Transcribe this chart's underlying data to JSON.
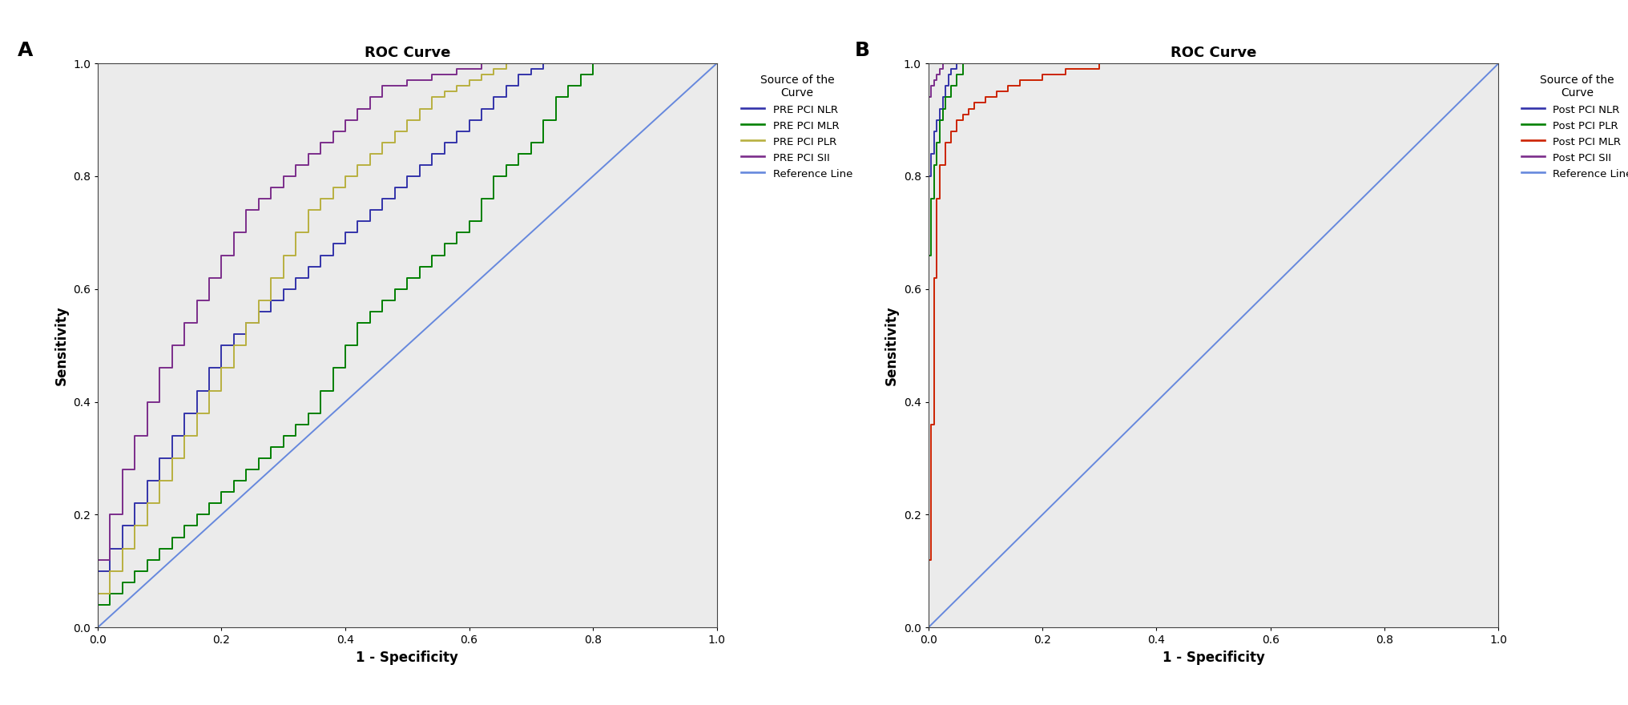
{
  "panel_A": {
    "title": "ROC Curve",
    "label": "A",
    "legend_title": "Source of the\nCurve",
    "curves": [
      {
        "name": "PRE PCI NLR",
        "color": "#3333aa",
        "x": [
          0.0,
          0.0,
          0.02,
          0.02,
          0.04,
          0.04,
          0.06,
          0.06,
          0.08,
          0.08,
          0.1,
          0.1,
          0.12,
          0.12,
          0.14,
          0.14,
          0.16,
          0.16,
          0.18,
          0.18,
          0.2,
          0.2,
          0.22,
          0.22,
          0.24,
          0.24,
          0.26,
          0.26,
          0.28,
          0.28,
          0.3,
          0.3,
          0.32,
          0.32,
          0.34,
          0.34,
          0.36,
          0.36,
          0.38,
          0.38,
          0.4,
          0.4,
          0.42,
          0.42,
          0.44,
          0.44,
          0.46,
          0.46,
          0.48,
          0.48,
          0.5,
          0.5,
          0.52,
          0.52,
          0.54,
          0.54,
          0.56,
          0.56,
          0.58,
          0.58,
          0.6,
          0.6,
          0.62,
          0.62,
          0.64,
          0.64,
          0.66,
          0.66,
          0.68,
          0.68,
          0.7,
          0.7,
          0.72,
          0.72,
          0.74,
          0.74,
          0.76,
          0.76,
          0.78,
          0.78,
          0.8,
          0.8,
          0.84,
          0.84,
          0.88,
          0.88,
          0.92,
          0.92,
          1.0
        ],
        "y": [
          0.0,
          0.1,
          0.1,
          0.14,
          0.14,
          0.18,
          0.18,
          0.22,
          0.22,
          0.26,
          0.26,
          0.3,
          0.3,
          0.34,
          0.34,
          0.38,
          0.38,
          0.42,
          0.42,
          0.46,
          0.46,
          0.5,
          0.5,
          0.52,
          0.52,
          0.54,
          0.54,
          0.56,
          0.56,
          0.58,
          0.58,
          0.6,
          0.6,
          0.62,
          0.62,
          0.64,
          0.64,
          0.66,
          0.66,
          0.68,
          0.68,
          0.7,
          0.7,
          0.72,
          0.72,
          0.74,
          0.74,
          0.76,
          0.76,
          0.78,
          0.78,
          0.8,
          0.8,
          0.82,
          0.82,
          0.84,
          0.84,
          0.86,
          0.86,
          0.88,
          0.88,
          0.9,
          0.9,
          0.92,
          0.92,
          0.94,
          0.94,
          0.96,
          0.96,
          0.98,
          0.98,
          0.99,
          0.99,
          1.0,
          1.0,
          1.0,
          1.0,
          1.0,
          1.0,
          1.0,
          1.0,
          1.0,
          1.0,
          1.0,
          1.0,
          1.0,
          1.0,
          1.0,
          1.0
        ]
      },
      {
        "name": "PRE PCI MLR",
        "color": "#008000",
        "x": [
          0.0,
          0.0,
          0.02,
          0.02,
          0.04,
          0.04,
          0.06,
          0.06,
          0.08,
          0.08,
          0.1,
          0.1,
          0.12,
          0.12,
          0.14,
          0.14,
          0.16,
          0.16,
          0.18,
          0.18,
          0.2,
          0.2,
          0.22,
          0.22,
          0.24,
          0.24,
          0.26,
          0.26,
          0.28,
          0.28,
          0.3,
          0.3,
          0.32,
          0.32,
          0.34,
          0.34,
          0.36,
          0.36,
          0.38,
          0.38,
          0.4,
          0.4,
          0.42,
          0.42,
          0.44,
          0.44,
          0.46,
          0.46,
          0.48,
          0.48,
          0.5,
          0.5,
          0.52,
          0.52,
          0.54,
          0.54,
          0.56,
          0.56,
          0.58,
          0.58,
          0.6,
          0.6,
          0.62,
          0.62,
          0.64,
          0.64,
          0.66,
          0.66,
          0.68,
          0.68,
          0.7,
          0.7,
          0.72,
          0.72,
          0.74,
          0.74,
          0.76,
          0.76,
          0.78,
          0.78,
          0.8,
          0.8,
          0.82,
          0.82,
          0.84,
          0.84,
          0.86,
          0.86,
          0.9,
          0.9,
          1.0
        ],
        "y": [
          0.0,
          0.04,
          0.04,
          0.06,
          0.06,
          0.08,
          0.08,
          0.1,
          0.1,
          0.12,
          0.12,
          0.14,
          0.14,
          0.16,
          0.16,
          0.18,
          0.18,
          0.2,
          0.2,
          0.22,
          0.22,
          0.24,
          0.24,
          0.26,
          0.26,
          0.28,
          0.28,
          0.3,
          0.3,
          0.32,
          0.32,
          0.34,
          0.34,
          0.36,
          0.36,
          0.38,
          0.38,
          0.42,
          0.42,
          0.46,
          0.46,
          0.5,
          0.5,
          0.54,
          0.54,
          0.56,
          0.56,
          0.58,
          0.58,
          0.6,
          0.6,
          0.62,
          0.62,
          0.64,
          0.64,
          0.66,
          0.66,
          0.68,
          0.68,
          0.7,
          0.7,
          0.72,
          0.72,
          0.76,
          0.76,
          0.8,
          0.8,
          0.82,
          0.82,
          0.84,
          0.84,
          0.86,
          0.86,
          0.9,
          0.9,
          0.94,
          0.94,
          0.96,
          0.96,
          0.98,
          0.98,
          1.0,
          1.0,
          1.0,
          1.0,
          1.0,
          1.0,
          1.0,
          1.0,
          1.0,
          1.0
        ]
      },
      {
        "name": "PRE PCI PLR",
        "color": "#b8b040",
        "x": [
          0.0,
          0.0,
          0.02,
          0.02,
          0.04,
          0.04,
          0.06,
          0.06,
          0.08,
          0.08,
          0.1,
          0.1,
          0.12,
          0.12,
          0.14,
          0.14,
          0.16,
          0.16,
          0.18,
          0.18,
          0.2,
          0.2,
          0.22,
          0.22,
          0.24,
          0.24,
          0.26,
          0.26,
          0.28,
          0.28,
          0.3,
          0.3,
          0.32,
          0.32,
          0.34,
          0.34,
          0.36,
          0.36,
          0.38,
          0.38,
          0.4,
          0.4,
          0.42,
          0.42,
          0.44,
          0.44,
          0.46,
          0.46,
          0.48,
          0.48,
          0.5,
          0.5,
          0.52,
          0.52,
          0.54,
          0.54,
          0.56,
          0.56,
          0.58,
          0.58,
          0.6,
          0.6,
          0.62,
          0.62,
          0.64,
          0.64,
          0.66,
          0.66,
          0.68,
          0.68,
          0.72,
          0.72,
          0.76,
          0.76,
          0.8,
          0.8,
          0.84,
          0.84,
          0.88,
          0.88,
          0.92,
          0.92,
          1.0
        ],
        "y": [
          0.0,
          0.06,
          0.06,
          0.1,
          0.1,
          0.14,
          0.14,
          0.18,
          0.18,
          0.22,
          0.22,
          0.26,
          0.26,
          0.3,
          0.3,
          0.34,
          0.34,
          0.38,
          0.38,
          0.42,
          0.42,
          0.46,
          0.46,
          0.5,
          0.5,
          0.54,
          0.54,
          0.58,
          0.58,
          0.62,
          0.62,
          0.66,
          0.66,
          0.7,
          0.7,
          0.74,
          0.74,
          0.76,
          0.76,
          0.78,
          0.78,
          0.8,
          0.8,
          0.82,
          0.82,
          0.84,
          0.84,
          0.86,
          0.86,
          0.88,
          0.88,
          0.9,
          0.9,
          0.92,
          0.92,
          0.94,
          0.94,
          0.95,
          0.95,
          0.96,
          0.96,
          0.97,
          0.97,
          0.98,
          0.98,
          0.99,
          0.99,
          1.0,
          1.0,
          1.0,
          1.0,
          1.0,
          1.0,
          1.0,
          1.0,
          1.0,
          1.0,
          1.0,
          1.0,
          1.0,
          1.0,
          1.0,
          1.0
        ]
      },
      {
        "name": "PRE PCI SII",
        "color": "#7b2d8b",
        "x": [
          0.0,
          0.0,
          0.02,
          0.02,
          0.04,
          0.04,
          0.06,
          0.06,
          0.08,
          0.08,
          0.1,
          0.1,
          0.12,
          0.12,
          0.14,
          0.14,
          0.16,
          0.16,
          0.18,
          0.18,
          0.2,
          0.2,
          0.22,
          0.22,
          0.24,
          0.24,
          0.26,
          0.26,
          0.28,
          0.28,
          0.3,
          0.3,
          0.32,
          0.32,
          0.34,
          0.34,
          0.36,
          0.36,
          0.38,
          0.38,
          0.4,
          0.4,
          0.42,
          0.42,
          0.44,
          0.44,
          0.46,
          0.46,
          0.5,
          0.5,
          0.54,
          0.54,
          0.58,
          0.58,
          0.62,
          0.62,
          0.66,
          0.66,
          0.7,
          0.7,
          0.74,
          0.74,
          0.78,
          0.78,
          0.82,
          0.82,
          0.86,
          0.86,
          1.0
        ],
        "y": [
          0.0,
          0.12,
          0.12,
          0.2,
          0.2,
          0.28,
          0.28,
          0.34,
          0.34,
          0.4,
          0.4,
          0.46,
          0.46,
          0.5,
          0.5,
          0.54,
          0.54,
          0.58,
          0.58,
          0.62,
          0.62,
          0.66,
          0.66,
          0.7,
          0.7,
          0.74,
          0.74,
          0.76,
          0.76,
          0.78,
          0.78,
          0.8,
          0.8,
          0.82,
          0.82,
          0.84,
          0.84,
          0.86,
          0.86,
          0.88,
          0.88,
          0.9,
          0.9,
          0.92,
          0.92,
          0.94,
          0.94,
          0.96,
          0.96,
          0.97,
          0.97,
          0.98,
          0.98,
          0.99,
          0.99,
          1.0,
          1.0,
          1.0,
          1.0,
          1.0,
          1.0,
          1.0,
          1.0,
          1.0,
          1.0,
          1.0,
          1.0,
          1.0,
          1.0
        ]
      }
    ]
  },
  "panel_B": {
    "title": "ROC Curve",
    "label": "B",
    "legend_title": "Source of the\nCurve",
    "curves": [
      {
        "name": "Post PCI NLR",
        "color": "#3333aa",
        "x": [
          0.0,
          0.0,
          0.005,
          0.005,
          0.01,
          0.01,
          0.015,
          0.015,
          0.02,
          0.02,
          0.025,
          0.025,
          0.03,
          0.03,
          0.035,
          0.035,
          0.04,
          0.04,
          0.05,
          0.05,
          0.06,
          0.06,
          0.07,
          0.07,
          1.0
        ],
        "y": [
          0.0,
          0.8,
          0.8,
          0.84,
          0.84,
          0.88,
          0.88,
          0.9,
          0.9,
          0.92,
          0.92,
          0.94,
          0.94,
          0.96,
          0.96,
          0.98,
          0.98,
          0.99,
          0.99,
          1.0,
          1.0,
          1.0,
          1.0,
          1.0,
          1.0
        ]
      },
      {
        "name": "Post PCI PLR",
        "color": "#008000",
        "x": [
          0.0,
          0.0,
          0.005,
          0.005,
          0.01,
          0.01,
          0.015,
          0.015,
          0.02,
          0.02,
          0.025,
          0.025,
          0.03,
          0.03,
          0.04,
          0.04,
          0.05,
          0.05,
          0.06,
          0.06,
          0.07,
          0.07,
          1.0
        ],
        "y": [
          0.0,
          0.66,
          0.66,
          0.76,
          0.76,
          0.82,
          0.82,
          0.86,
          0.86,
          0.9,
          0.9,
          0.92,
          0.92,
          0.94,
          0.94,
          0.96,
          0.96,
          0.98,
          0.98,
          1.0,
          1.0,
          1.0,
          1.0
        ]
      },
      {
        "name": "Post PCI MLR",
        "color": "#cc2200",
        "x": [
          0.0,
          0.0,
          0.005,
          0.005,
          0.01,
          0.01,
          0.015,
          0.015,
          0.02,
          0.02,
          0.03,
          0.03,
          0.04,
          0.04,
          0.05,
          0.05,
          0.06,
          0.06,
          0.07,
          0.07,
          0.08,
          0.08,
          0.1,
          0.1,
          0.12,
          0.12,
          0.14,
          0.14,
          0.16,
          0.16,
          0.2,
          0.2,
          0.24,
          0.24,
          0.3,
          0.3,
          0.4,
          0.4,
          0.5,
          0.5,
          0.55,
          0.55,
          1.0
        ],
        "y": [
          0.0,
          0.12,
          0.12,
          0.36,
          0.36,
          0.62,
          0.62,
          0.76,
          0.76,
          0.82,
          0.82,
          0.86,
          0.86,
          0.88,
          0.88,
          0.9,
          0.9,
          0.91,
          0.91,
          0.92,
          0.92,
          0.93,
          0.93,
          0.94,
          0.94,
          0.95,
          0.95,
          0.96,
          0.96,
          0.97,
          0.97,
          0.98,
          0.98,
          0.99,
          0.99,
          1.0,
          1.0,
          1.0,
          1.0,
          1.0,
          1.0,
          1.0,
          1.0
        ]
      },
      {
        "name": "Post PCI SII",
        "color": "#7b2d8b",
        "x": [
          0.0,
          0.0,
          0.005,
          0.005,
          0.01,
          0.01,
          0.015,
          0.015,
          0.02,
          0.02,
          0.025,
          0.025,
          0.03,
          0.03,
          0.04,
          0.04,
          0.05,
          0.05,
          0.06,
          0.06,
          1.0
        ],
        "y": [
          0.0,
          0.94,
          0.94,
          0.96,
          0.96,
          0.97,
          0.97,
          0.98,
          0.98,
          0.99,
          0.99,
          1.0,
          1.0,
          1.0,
          1.0,
          1.0,
          1.0,
          1.0,
          1.0,
          1.0,
          1.0
        ]
      }
    ]
  },
  "reference_line": {
    "color": "#6688dd",
    "name": "Reference Line"
  },
  "background_color": "#ebebeb",
  "xlabel": "1 - Specificity",
  "ylabel": "Sensitivity",
  "tick_labels": [
    "0.0",
    "0.2",
    "0.4",
    "0.6",
    "0.8",
    "1.0"
  ],
  "tick_values": [
    0.0,
    0.2,
    0.4,
    0.6,
    0.8,
    1.0
  ],
  "linewidth": 1.4,
  "fig_width": 20.33,
  "fig_height": 8.8,
  "dpi": 100
}
